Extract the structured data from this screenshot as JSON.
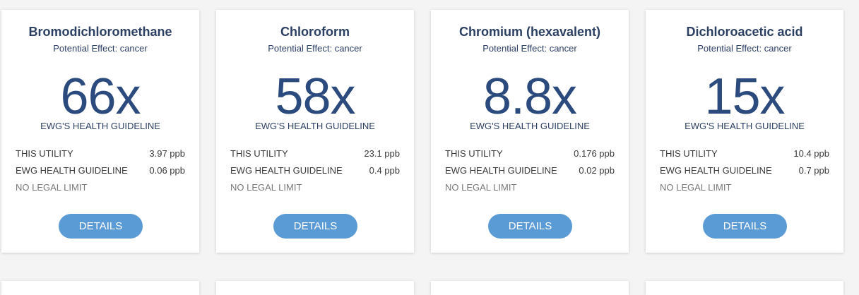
{
  "cards": [
    {
      "title": "Bromodichloromethane",
      "effect": "Potential Effect: cancer",
      "multiple": "66x",
      "multiple_caption": "EWG'S HEALTH GUIDELINE",
      "utility_label": "THIS UTILITY",
      "utility_value": "3.97 ppb",
      "guideline_label": "EWG HEALTH GUIDELINE",
      "guideline_value": "0.06 ppb",
      "legal_limit": "NO LEGAL LIMIT",
      "details_label": "DETAILS"
    },
    {
      "title": "Chloroform",
      "effect": "Potential Effect: cancer",
      "multiple": "58x",
      "multiple_caption": "EWG'S HEALTH GUIDELINE",
      "utility_label": "THIS UTILITY",
      "utility_value": "23.1 ppb",
      "guideline_label": "EWG HEALTH GUIDELINE",
      "guideline_value": "0.4 ppb",
      "legal_limit": "NO LEGAL LIMIT",
      "details_label": "DETAILS"
    },
    {
      "title": "Chromium (hexavalent)",
      "effect": "Potential Effect: cancer",
      "multiple": "8.8x",
      "multiple_caption": "EWG'S HEALTH GUIDELINE",
      "utility_label": "THIS UTILITY",
      "utility_value": "0.176 ppb",
      "guideline_label": "EWG HEALTH GUIDELINE",
      "guideline_value": "0.02 ppb",
      "legal_limit": "NO LEGAL LIMIT",
      "details_label": "DETAILS"
    },
    {
      "title": "Dichloroacetic acid",
      "effect": "Potential Effect: cancer",
      "multiple": "15x",
      "multiple_caption": "EWG'S HEALTH GUIDELINE",
      "utility_label": "THIS UTILITY",
      "utility_value": "10.4 ppb",
      "guideline_label": "EWG HEALTH GUIDELINE",
      "guideline_value": "0.7 ppb",
      "legal_limit": "NO LEGAL LIMIT",
      "details_label": "DETAILS"
    }
  ],
  "colors": {
    "accent_button": "#5b9bd5",
    "title_text": "#2b3f63",
    "multiple_text": "#2b4a7d"
  }
}
